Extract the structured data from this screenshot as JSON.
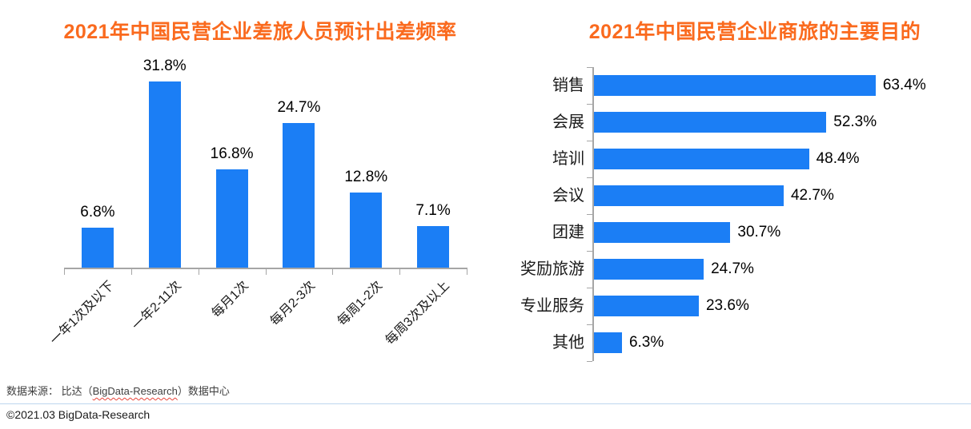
{
  "page": {
    "background_color": "#FFFFFF",
    "accent_title_color": "#FA6A1E",
    "bar_color": "#1B7EF5",
    "axis_color": "#A6A6A6",
    "divider_color": "#BDD7EE"
  },
  "chart_data": [
    {
      "type": "bar",
      "orientation": "vertical",
      "title": "2021年中国民营企业差旅人员预计出差频率",
      "categories": [
        "一年1次及以下",
        "一年2-11次",
        "每月1次",
        "每月2-3次",
        "每周1-2次",
        "每周3次及以上"
      ],
      "values": [
        6.8,
        31.8,
        16.8,
        24.7,
        12.8,
        7.1
      ],
      "data_labels": [
        "6.8%",
        "31.8%",
        "16.8%",
        "24.7%",
        "12.8%",
        "7.1%"
      ],
      "unit": "%",
      "ylim": [
        0,
        35
      ],
      "grid": false,
      "legend": "none",
      "bar_color": "#1B7EF5",
      "x_labels_rotated_degrees": 45
    },
    {
      "type": "bar",
      "orientation": "horizontal",
      "title": "2021年中国民营企业商旅的主要目的",
      "categories": [
        "销售",
        "会展",
        "培训",
        "会议",
        "团建",
        "奖励旅游",
        "专业服务",
        "其他"
      ],
      "values": [
        63.4,
        52.3,
        48.4,
        42.7,
        30.7,
        24.7,
        23.6,
        6.3
      ],
      "data_labels": [
        "63.4%",
        "52.3%",
        "48.4%",
        "42.7%",
        "30.7%",
        "24.7%",
        "23.6%",
        "6.3%"
      ],
      "unit": "%",
      "xlim": [
        0,
        70
      ],
      "grid": false,
      "legend": "none",
      "bar_color": "#1B7EF5"
    }
  ],
  "footer": {
    "source_prefix": "数据来源： 比达（",
    "source_brand": "BigData-Research",
    "source_suffix": "）数据中心",
    "copyright": "©2021.03 BigData-Research"
  }
}
